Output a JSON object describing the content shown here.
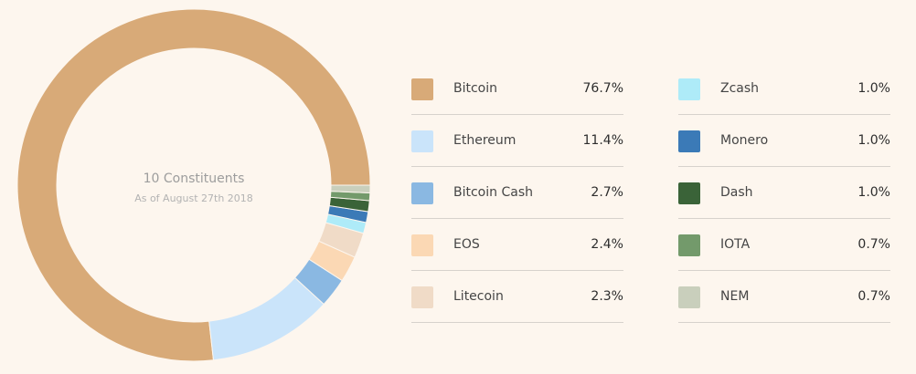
{
  "chart_data": {
    "type": "pie",
    "title": "10 Constituents",
    "subtitle": "As of August 27th 2018",
    "slices": [
      {
        "name": "Bitcoin",
        "label": "76.7%",
        "value": 76.7,
        "color": "#d8aa78"
      },
      {
        "name": "Ethereum",
        "label": "11.4%",
        "value": 11.4,
        "color": "#cae4fa"
      },
      {
        "name": "Bitcoin Cash",
        "label": "2.7%",
        "value": 2.7,
        "color": "#8ab8e2"
      },
      {
        "name": "EOS",
        "label": "2.4%",
        "value": 2.4,
        "color": "#fbd8b4"
      },
      {
        "name": "Litecoin",
        "label": "2.3%",
        "value": 2.3,
        "color": "#f0dbc7"
      },
      {
        "name": "Zcash",
        "label": "1.0%",
        "value": 1.0,
        "color": "#aeebf8"
      },
      {
        "name": "Monero",
        "label": "1.0%",
        "value": 1.0,
        "color": "#3b7ab7"
      },
      {
        "name": "Dash",
        "label": "1.0%",
        "value": 1.0,
        "color": "#3a6338"
      },
      {
        "name": "IOTA",
        "label": "0.7%",
        "value": 0.7,
        "color": "#739a6b"
      },
      {
        "name": "NEM",
        "label": "0.7%",
        "value": 0.7,
        "color": "#c9cfbc"
      }
    ]
  }
}
